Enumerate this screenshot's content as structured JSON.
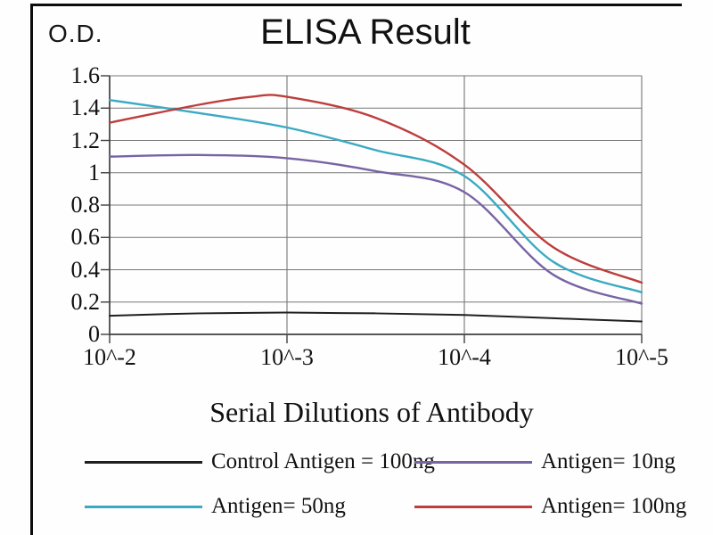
{
  "chart_data": {
    "type": "line",
    "title": "ELISA Result",
    "ylabel": "O.D.",
    "xlabel": "Serial Dilutions of Antibody",
    "x_tick_labels": [
      "10^-2",
      "10^-3",
      "10^-4",
      "10^-5"
    ],
    "y_ticks": [
      0,
      0.2,
      0.4,
      0.6,
      0.8,
      1,
      1.2,
      1.4,
      1.6
    ],
    "y_tick_labels": [
      "0",
      "0.2",
      "0.4",
      "0.6",
      "0.8",
      "1",
      "1.2",
      "1.4",
      "1.6"
    ],
    "ylim": [
      0,
      1.6
    ],
    "grid": true,
    "legend_position": "bottom",
    "x_units": "tick_index (0 = 10^-2 ... 3 = 10^-5)",
    "series": [
      {
        "name": "Control Antigen = 100ng",
        "color": "#1f1f1f",
        "x": [
          0,
          0.5,
          1,
          1.5,
          2,
          2.5,
          3
        ],
        "values": [
          0.115,
          0.13,
          0.135,
          0.13,
          0.12,
          0.1,
          0.08
        ]
      },
      {
        "name": "Antigen= 10ng",
        "color": "#7864a4",
        "x": [
          0,
          0.5,
          1,
          1.5,
          2,
          2.5,
          3
        ],
        "values": [
          1.1,
          1.11,
          1.09,
          1.01,
          0.88,
          0.37,
          0.19
        ]
      },
      {
        "name": "Antigen= 50ng",
        "color": "#3aaac2",
        "x": [
          0,
          0.5,
          1,
          1.5,
          2,
          2.5,
          3
        ],
        "values": [
          1.45,
          1.37,
          1.28,
          1.14,
          0.98,
          0.45,
          0.26
        ]
      },
      {
        "name": "Antigen= 100ng",
        "color": "#bd3e3c",
        "x": [
          0,
          0.5,
          0.8,
          1,
          1.5,
          2,
          2.5,
          3
        ],
        "values": [
          1.31,
          1.42,
          1.47,
          1.47,
          1.34,
          1.05,
          0.54,
          0.32
        ]
      }
    ],
    "legend_rows": [
      [
        {
          "label": "Control Antigen = 100ng",
          "series_index": 0
        },
        {
          "label": "Antigen= 10ng",
          "series_index": 1
        }
      ],
      [
        {
          "label": "Antigen= 50ng",
          "series_index": 2
        },
        {
          "label": "Antigen= 100ng",
          "series_index": 3
        }
      ]
    ]
  },
  "colors": {
    "grid": "#767676",
    "axis": "#3f3f3f",
    "frame": "#0c0c0c",
    "background": "#fefefe"
  }
}
